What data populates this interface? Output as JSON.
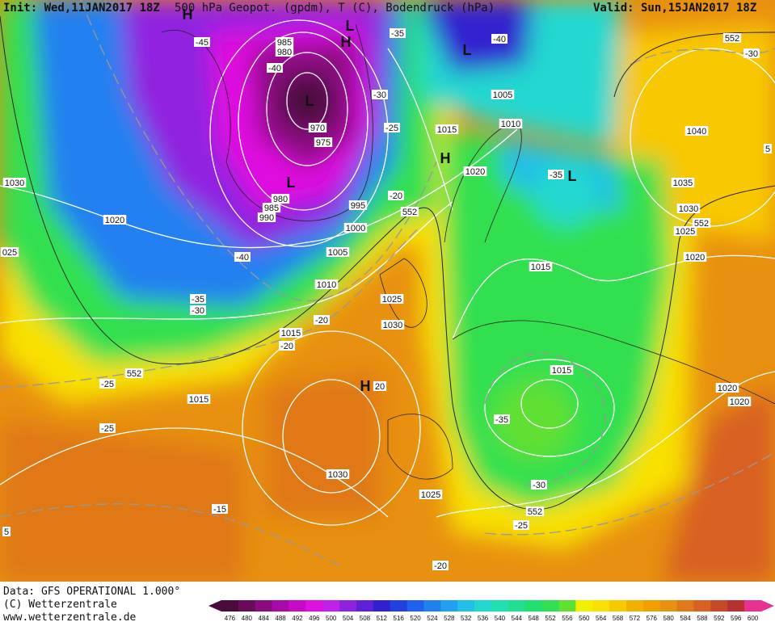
{
  "header": {
    "init": "Init: Wed,11JAN2017 18Z",
    "title": "500 hPa Geopot. (gpdm), T (C), Bodendruck (hPa)",
    "valid": "Valid: Sun,15JAN2017 18Z"
  },
  "footer": {
    "data": "Data: GFS OPERATIONAL 1.000°",
    "copyright": "(C) Wetterzentrale",
    "url": "www.wetterzentrale.de"
  },
  "colorbar": {
    "labels": [
      "476",
      "480",
      "484",
      "488",
      "492",
      "496",
      "500",
      "504",
      "508",
      "512",
      "516",
      "520",
      "524",
      "528",
      "532",
      "536",
      "540",
      "544",
      "548",
      "552",
      "556",
      "560",
      "564",
      "568",
      "572",
      "576",
      "580",
      "584",
      "588",
      "592",
      "596",
      "600"
    ],
    "colors": [
      "#4b0a3c",
      "#6a0a5a",
      "#8a0a80",
      "#a80aa8",
      "#c80ac8",
      "#e010e0",
      "#c020e8",
      "#9020e0",
      "#6020d8",
      "#3020d0",
      "#2040e0",
      "#2060f0",
      "#2080f0",
      "#20a0f0",
      "#20c0e8",
      "#20d8d0",
      "#20e0b0",
      "#20e090",
      "#20e070",
      "#30e050",
      "#60e030",
      "#f0f000",
      "#f8e000",
      "#f8c800",
      "#f0b000",
      "#f0a000",
      "#e89010",
      "#e07818",
      "#d86020",
      "#c84828",
      "#b83030",
      "#e83090"
    ]
  },
  "map_labels": [
    "-45",
    "985",
    "980",
    "-40",
    "970",
    "975",
    "980",
    "985",
    "990",
    "995",
    "1000",
    "1005",
    "1010",
    "1015",
    "-20",
    "-20",
    "1025",
    "1030",
    "1015",
    "-25",
    "552",
    "-25",
    "1030",
    "-15",
    "1025",
    "-20",
    "1030",
    "1020",
    "025",
    "-40",
    "-35",
    "-30",
    "-35",
    "-30",
    "-25",
    "-20",
    "552",
    "1015",
    "1020",
    "-40",
    "1005",
    "1010",
    "-35",
    "1015",
    "1015",
    "-35",
    "-30",
    "552",
    "-25",
    "552",
    "-30",
    "1040",
    "1035",
    "1030",
    "1025",
    "552",
    "1020",
    "1020",
    "1020",
    "5",
    "5",
    "20"
  ],
  "pressure_systems": [
    "L",
    "H",
    "L",
    "L",
    "H",
    "L",
    "L",
    "H",
    "H"
  ]
}
